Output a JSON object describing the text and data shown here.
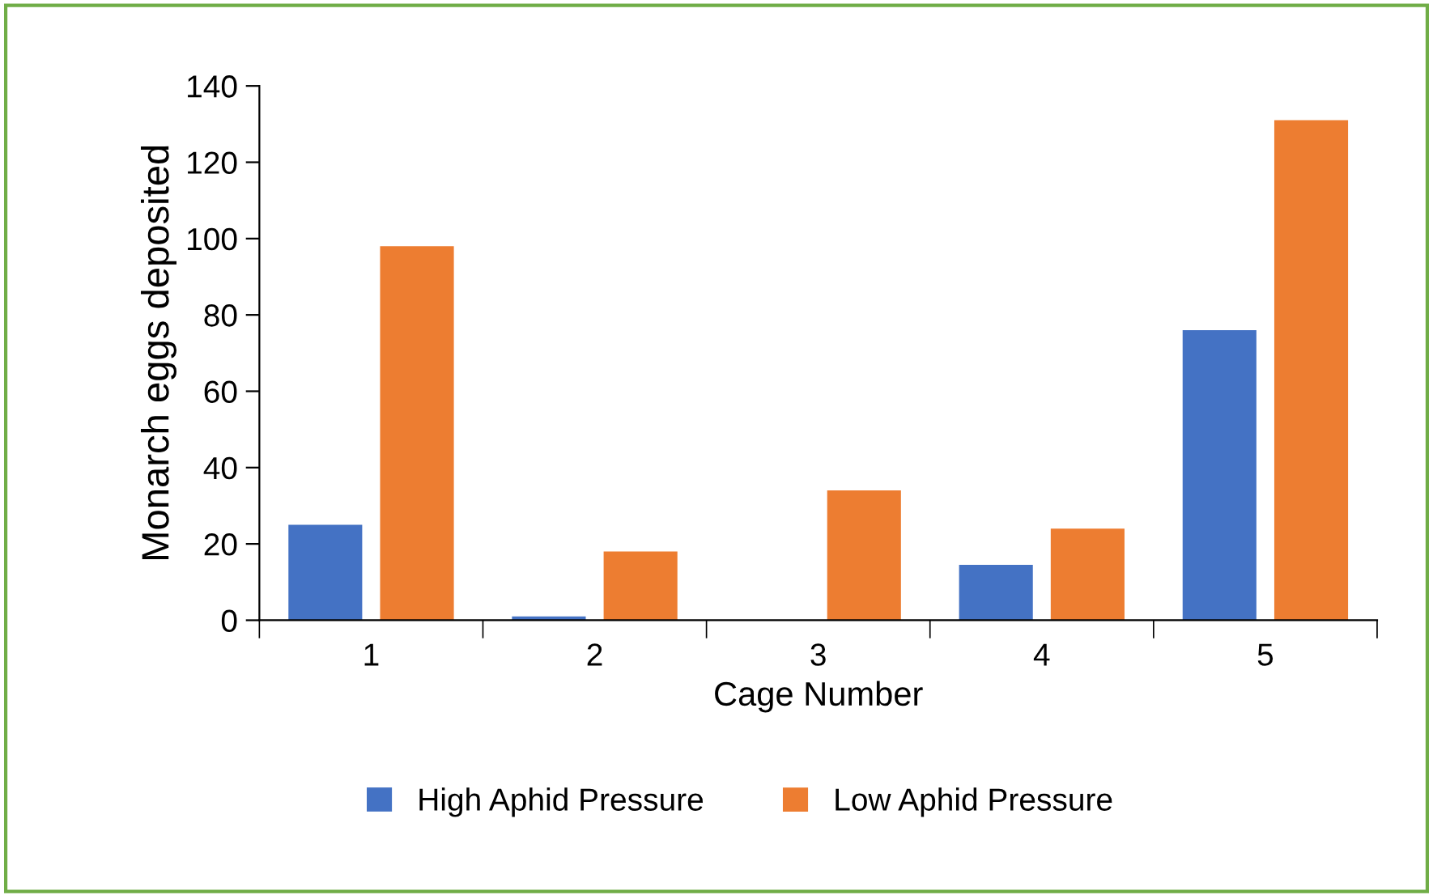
{
  "chart_data": {
    "type": "bar",
    "xlabel": "Cage Number",
    "ylabel": "Monarch eggs deposited",
    "categories": [
      "1",
      "2",
      "3",
      "4",
      "5"
    ],
    "series": [
      {
        "name": "High Aphid Pressure",
        "color": "#4472c4",
        "values": [
          25,
          1,
          0,
          14.5,
          76
        ]
      },
      {
        "name": "Low Aphid Pressure",
        "color": "#ed7d31",
        "values": [
          98,
          18,
          34,
          24,
          131
        ]
      }
    ],
    "ylim": [
      0,
      140
    ],
    "yticks": [
      0,
      20,
      40,
      60,
      80,
      100,
      120,
      140
    ],
    "grid": false,
    "legend": "bottom"
  }
}
